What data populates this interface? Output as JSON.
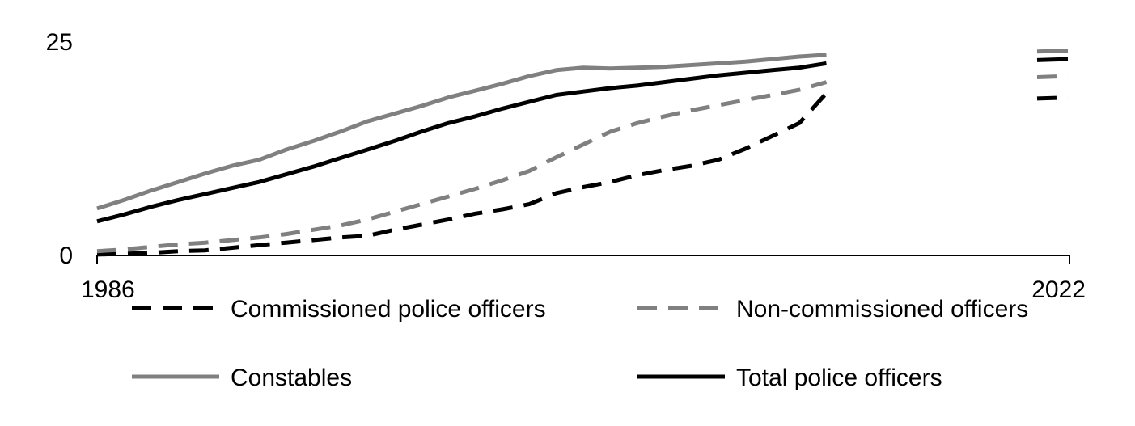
{
  "chart_data": {
    "type": "line",
    "title": "",
    "xlabel": "",
    "ylabel": "",
    "xlim": [
      1986,
      2022
    ],
    "ylim": [
      0,
      25
    ],
    "x_tick_labels": [
      "1986",
      "2022"
    ],
    "y_tick_labels": [
      "0",
      "25"
    ],
    "grid": false,
    "legend_placement": "bottom",
    "series": [
      {
        "name": "Commissioned police officers",
        "style": "dashed",
        "color": "#000000",
        "points": [
          [
            1986,
            0.1
          ],
          [
            1987,
            0.2
          ],
          [
            1988,
            0.3
          ],
          [
            1989,
            0.5
          ],
          [
            1990,
            0.6
          ],
          [
            1991,
            0.9
          ],
          [
            1992,
            1.2
          ],
          [
            1993,
            1.5
          ],
          [
            1994,
            1.8
          ],
          [
            1995,
            2.1
          ],
          [
            1996,
            2.3
          ],
          [
            1997,
            3.0
          ],
          [
            1998,
            3.6
          ],
          [
            1999,
            4.2
          ],
          [
            2000,
            4.9
          ],
          [
            2001,
            5.4
          ],
          [
            2002,
            6.0
          ],
          [
            2003,
            7.3
          ],
          [
            2004,
            8.0
          ],
          [
            2005,
            8.6
          ],
          [
            2006,
            9.4
          ],
          [
            2007,
            10.0
          ],
          [
            2008,
            10.5
          ],
          [
            2009,
            11.2
          ],
          [
            2010,
            12.5
          ],
          [
            2011,
            14.0
          ],
          [
            2012,
            15.5
          ],
          [
            2013,
            19.0
          ],
          [
            2022,
            18.5
          ]
        ]
      },
      {
        "name": "Non-commissioned officers",
        "style": "dashed",
        "color": "#808080",
        "points": [
          [
            1986,
            0.5
          ],
          [
            1987,
            0.7
          ],
          [
            1988,
            1.0
          ],
          [
            1989,
            1.3
          ],
          [
            1990,
            1.5
          ],
          [
            1991,
            1.8
          ],
          [
            1992,
            2.1
          ],
          [
            1993,
            2.5
          ],
          [
            1994,
            3.0
          ],
          [
            1995,
            3.5
          ],
          [
            1996,
            4.2
          ],
          [
            1997,
            5.1
          ],
          [
            1998,
            6.0
          ],
          [
            1999,
            6.9
          ],
          [
            2000,
            7.8
          ],
          [
            2001,
            8.8
          ],
          [
            2002,
            9.9
          ],
          [
            2003,
            11.5
          ],
          [
            2004,
            13.0
          ],
          [
            2005,
            14.5
          ],
          [
            2006,
            15.5
          ],
          [
            2007,
            16.3
          ],
          [
            2008,
            17.0
          ],
          [
            2009,
            17.6
          ],
          [
            2010,
            18.2
          ],
          [
            2011,
            18.8
          ],
          [
            2012,
            19.4
          ],
          [
            2013,
            20.3
          ],
          [
            2022,
            21.0
          ]
        ]
      },
      {
        "name": "Constables",
        "style": "solid",
        "color": "#808080",
        "points": [
          [
            1986,
            5.5
          ],
          [
            1987,
            6.5
          ],
          [
            1988,
            7.6
          ],
          [
            1989,
            8.6
          ],
          [
            1990,
            9.6
          ],
          [
            1991,
            10.5
          ],
          [
            1992,
            11.2
          ],
          [
            1993,
            12.4
          ],
          [
            1994,
            13.4
          ],
          [
            1995,
            14.5
          ],
          [
            1996,
            15.7
          ],
          [
            1997,
            16.6
          ],
          [
            1998,
            17.5
          ],
          [
            1999,
            18.5
          ],
          [
            2000,
            19.3
          ],
          [
            2001,
            20.1
          ],
          [
            2002,
            21.0
          ],
          [
            2003,
            21.7
          ],
          [
            2004,
            22.0
          ],
          [
            2005,
            21.9
          ],
          [
            2006,
            22.0
          ],
          [
            2007,
            22.1
          ],
          [
            2008,
            22.3
          ],
          [
            2009,
            22.5
          ],
          [
            2010,
            22.7
          ],
          [
            2011,
            23.0
          ],
          [
            2012,
            23.3
          ],
          [
            2013,
            23.5
          ],
          [
            2022,
            24.0
          ]
        ]
      },
      {
        "name": "Total police officers",
        "style": "solid",
        "color": "#000000",
        "points": [
          [
            1986,
            4.0
          ],
          [
            1987,
            4.8
          ],
          [
            1988,
            5.7
          ],
          [
            1989,
            6.5
          ],
          [
            1990,
            7.2
          ],
          [
            1991,
            7.9
          ],
          [
            1992,
            8.6
          ],
          [
            1993,
            9.5
          ],
          [
            1994,
            10.4
          ],
          [
            1995,
            11.4
          ],
          [
            1996,
            12.4
          ],
          [
            1997,
            13.4
          ],
          [
            1998,
            14.5
          ],
          [
            1999,
            15.5
          ],
          [
            2000,
            16.3
          ],
          [
            2001,
            17.2
          ],
          [
            2002,
            18.0
          ],
          [
            2003,
            18.8
          ],
          [
            2004,
            19.2
          ],
          [
            2005,
            19.6
          ],
          [
            2006,
            19.9
          ],
          [
            2007,
            20.3
          ],
          [
            2008,
            20.7
          ],
          [
            2009,
            21.1
          ],
          [
            2010,
            21.4
          ],
          [
            2011,
            21.7
          ],
          [
            2012,
            22.0
          ],
          [
            2013,
            22.5
          ],
          [
            2022,
            23.0
          ]
        ]
      }
    ]
  }
}
